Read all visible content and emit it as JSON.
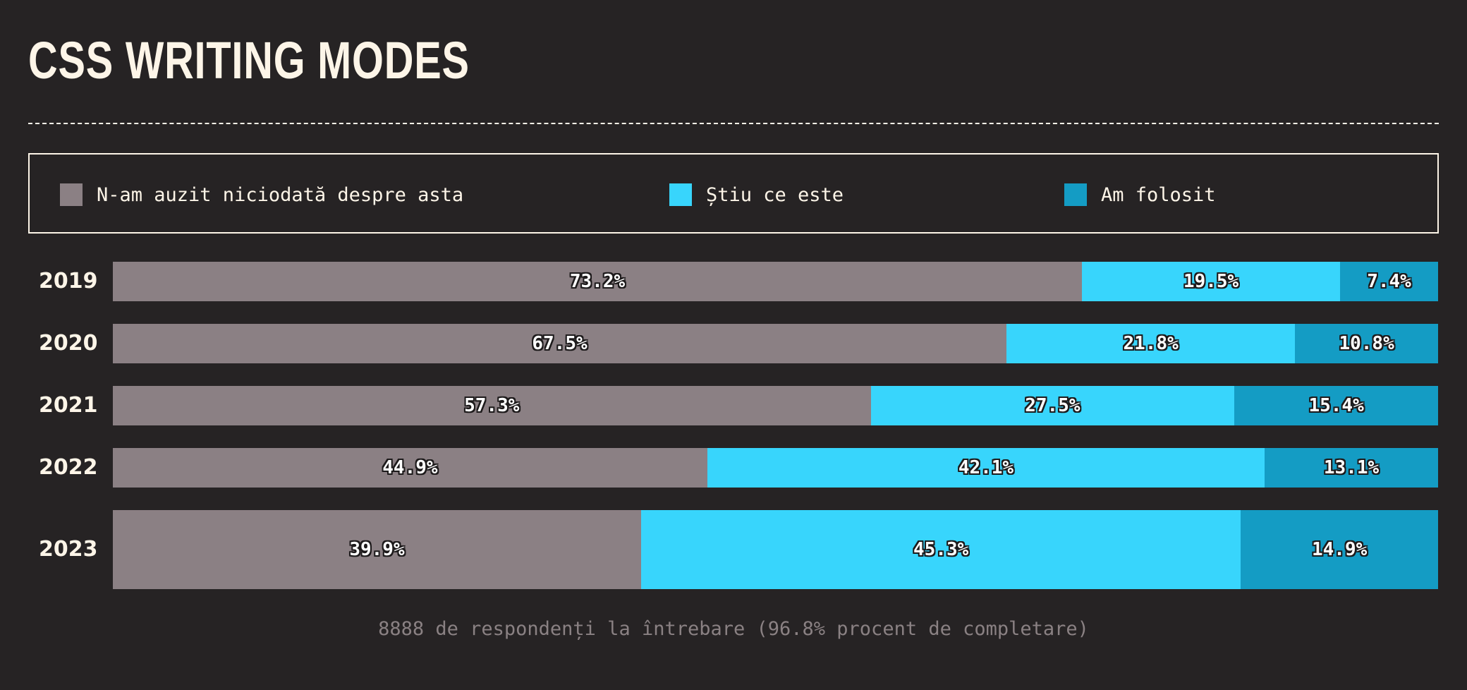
{
  "title": "CSS WRITING MODES",
  "legend": {
    "items": [
      {
        "label": "N-am auzit niciodată despre asta",
        "color": "#8b8084"
      },
      {
        "label": "Știu ce este",
        "color": "#38d5fc"
      },
      {
        "label": "Am folosit",
        "color": "#149cc4"
      }
    ]
  },
  "chart_data": {
    "type": "bar",
    "orientation": "horizontal",
    "stacked": true,
    "categories": [
      "2019",
      "2020",
      "2021",
      "2022",
      "2023"
    ],
    "series": [
      {
        "name": "N-am auzit niciodată despre asta",
        "color": "#8b8084",
        "values": [
          73.2,
          67.5,
          57.3,
          44.9,
          39.9
        ]
      },
      {
        "name": "Știu ce este",
        "color": "#38d5fc",
        "values": [
          19.5,
          21.8,
          27.5,
          42.1,
          45.3
        ]
      },
      {
        "name": "Am folosit",
        "color": "#149cc4",
        "values": [
          7.4,
          10.8,
          15.4,
          13.1,
          14.9
        ]
      }
    ],
    "value_suffix": "%",
    "legend_position": "top",
    "grid": false
  },
  "footer": "8888 de respondenți la întrebare (96.8% procent de completare)"
}
